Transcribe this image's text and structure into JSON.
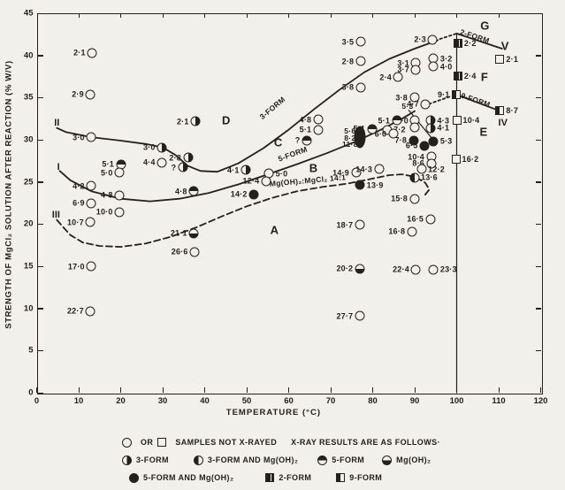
{
  "ink": "#24211d",
  "paper": "#f2f0ea",
  "chart_data": {
    "type": "scatter",
    "title": "",
    "xlabel": "TEMPERATURE (°C)",
    "ylabel": "STRENGTH OF MgCl₂ SOLUTION AFTER REACTION (% W/V)",
    "xlim": [
      0,
      120
    ],
    "ylim": [
      0,
      45
    ],
    "xticks": [
      0,
      10,
      20,
      30,
      40,
      50,
      60,
      70,
      80,
      90,
      100,
      110,
      120
    ],
    "yticks": [
      0,
      5,
      10,
      15,
      20,
      25,
      30,
      35,
      40,
      45
    ],
    "grid": false,
    "symbol_key": {
      "o": "open-circle (not x-rayed)",
      "r": "3-form (right-half filled circle)",
      "l": "3-form and Mg(OH)2 (left-half filled circle)",
      "t": "5-form (top-half filled circle)",
      "b": "Mg(OH)2 (bottom-half filled circle)",
      "f": "5-form and Mg(OH)2 (filled circle)",
      "sq": "open-square (not x-rayed)",
      "s2": "2-form (filled square, white stripe)",
      "s9": "9-form (half-filled square)",
      "blob": "merged filled samples"
    },
    "points": [
      {
        "label": "2·1",
        "t": 13.2,
        "s": 40.3,
        "sym": "o",
        "side": "l"
      },
      {
        "label": "2·9",
        "t": 12.8,
        "s": 35.4,
        "sym": "o",
        "side": "l"
      },
      {
        "label": "3·0",
        "t": 13.0,
        "s": 30.3,
        "sym": "o",
        "side": "l"
      },
      {
        "label": "5·1",
        "t": 20.0,
        "s": 27.1,
        "sym": "t",
        "side": "l"
      },
      {
        "label": "5·0",
        "t": 19.7,
        "s": 26.1,
        "sym": "o",
        "side": "l"
      },
      {
        "label": "4·4",
        "t": 29.8,
        "s": 27.3,
        "sym": "o",
        "side": "l"
      },
      {
        "label": "4·2",
        "t": 13.0,
        "s": 24.5,
        "sym": "o",
        "side": "l"
      },
      {
        "label": "4·8",
        "t": 19.7,
        "s": 23.4,
        "sym": "o",
        "side": "l"
      },
      {
        "label": "6·9",
        "t": 13.0,
        "s": 22.5,
        "sym": "o",
        "side": "l"
      },
      {
        "label": "10·0",
        "t": 19.7,
        "s": 21.4,
        "sym": "o",
        "side": "l"
      },
      {
        "label": "10·7",
        "t": 12.8,
        "s": 20.2,
        "sym": "o",
        "side": "l"
      },
      {
        "label": "17·0",
        "t": 13.0,
        "s": 15.0,
        "sym": "o",
        "side": "l"
      },
      {
        "label": "22·7",
        "t": 12.8,
        "s": 9.7,
        "sym": "o",
        "side": "l"
      },
      {
        "label": "3·0",
        "t": 29.8,
        "s": 29.1,
        "sym": "r",
        "side": "l"
      },
      {
        "label": "2·1",
        "t": 37.8,
        "s": 32.2,
        "sym": "r",
        "side": "l"
      },
      {
        "label": "2·8",
        "t": 36.0,
        "s": 27.9,
        "sym": "r",
        "side": "l"
      },
      {
        "label": "?",
        "t": 34.8,
        "s": 26.7,
        "sym": "r",
        "side": "l"
      },
      {
        "label": "26·6",
        "t": 37.6,
        "s": 16.7,
        "sym": "o",
        "side": "l"
      },
      {
        "label": "21·1",
        "t": 37.4,
        "s": 18.9,
        "sym": "b",
        "side": "l"
      },
      {
        "label": "4·8",
        "t": 37.4,
        "s": 23.9,
        "sym": "t",
        "side": "l"
      },
      {
        "label": "4·1",
        "t": 49.8,
        "s": 26.4,
        "sym": "r",
        "side": "l"
      },
      {
        "label": "5·0",
        "t": 55.3,
        "s": 26.0,
        "sym": "o",
        "side": "r"
      },
      {
        "label": "12·4",
        "t": 54.6,
        "s": 25.1,
        "sym": "o",
        "side": "l"
      },
      {
        "label": "14·2",
        "t": 51.7,
        "s": 23.5,
        "sym": "f",
        "side": "l"
      },
      {
        "label": "?",
        "t": 64.3,
        "s": 29.9,
        "sym": "t",
        "side": "l"
      },
      {
        "label": "4·8",
        "t": 67.0,
        "s": 32.4,
        "sym": "o",
        "side": "l"
      },
      {
        "label": "5·1",
        "t": 67.0,
        "s": 31.2,
        "sym": "o",
        "side": "l"
      },
      {
        "label": "3·5",
        "t": 77.1,
        "s": 41.6,
        "sym": "o",
        "side": "l"
      },
      {
        "label": "2·8",
        "t": 77.1,
        "s": 39.3,
        "sym": "o",
        "side": "l"
      },
      {
        "label": "3·8",
        "t": 77.1,
        "s": 36.2,
        "sym": "o",
        "side": "l"
      },
      {
        "label": "14·9",
        "t": 76.0,
        "s": 26.1,
        "sym": "o",
        "side": "l"
      },
      {
        "label": "14·3",
        "t": 81.5,
        "s": 26.5,
        "sym": "o",
        "side": "l"
      },
      {
        "label": "13·9",
        "t": 77.0,
        "s": 24.6,
        "sym": "f",
        "side": "r"
      },
      {
        "label": "18·7",
        "t": 76.9,
        "s": 19.9,
        "sym": "o",
        "side": "l"
      },
      {
        "label": "20·2",
        "t": 76.9,
        "s": 14.7,
        "sym": "b",
        "side": "l"
      },
      {
        "label": "27·7",
        "t": 76.9,
        "s": 9.1,
        "sym": "o",
        "side": "l"
      },
      {
        "label": "2·3",
        "t": 94.3,
        "s": 41.9,
        "sym": "o",
        "side": "l"
      },
      {
        "label": "3·1",
        "t": 90.3,
        "s": 39.1,
        "sym": "o",
        "side": "l"
      },
      {
        "label": "3·7",
        "t": 90.3,
        "s": 38.3,
        "sym": "o",
        "side": "l"
      },
      {
        "label": "3·2",
        "t": 94.5,
        "s": 39.6,
        "sym": "o",
        "side": "r"
      },
      {
        "label": "4·0",
        "t": 94.5,
        "s": 38.7,
        "sym": "o",
        "side": "r"
      },
      {
        "label": "2·4",
        "t": 86.1,
        "s": 37.4,
        "sym": "o",
        "side": "l"
      },
      {
        "label": "3·8",
        "t": 89.9,
        "s": 35.0,
        "sym": "o",
        "side": "l"
      },
      {
        "label": "4·7",
        "t": 92.6,
        "s": 34.2,
        "sym": "o",
        "side": "l"
      },
      {
        "label": "5·0",
        "t": 90.1,
        "s": 32.3,
        "sym": "o",
        "side": "l"
      },
      {
        "label": "",
        "t": 90.1,
        "s": 31.5,
        "sym": "o",
        "side": "l"
      },
      {
        "label": "5·1",
        "t": 85.7,
        "s": 32.3,
        "sym": "t",
        "side": "l"
      },
      {
        "label": "5·1",
        "t": 79.8,
        "s": 31.3,
        "sym": "t",
        "side": "l"
      },
      {
        "label": "7·2",
        "t": 83.4,
        "s": 31.2,
        "sym": "o",
        "side": "r"
      },
      {
        "label": "6·0",
        "t": 84.9,
        "s": 30.7,
        "sym": "o",
        "side": "l"
      },
      {
        "label": "4·3",
        "t": 93.8,
        "s": 32.3,
        "sym": "r",
        "side": "r"
      },
      {
        "label": "4·1",
        "t": 93.8,
        "s": 31.4,
        "sym": "r",
        "side": "r"
      },
      {
        "label": "7·8",
        "t": 89.7,
        "s": 29.9,
        "sym": "f",
        "side": "l"
      },
      {
        "label": "6·5",
        "t": 92.3,
        "s": 29.3,
        "sym": "f",
        "side": "l"
      },
      {
        "label": "5·3",
        "t": 94.5,
        "s": 29.8,
        "sym": "f",
        "side": "r"
      },
      {
        "label": "",
        "t": 76.9,
        "s": 30.3,
        "sym": "blob",
        "side": "l"
      },
      {
        "label": "10·4",
        "t": 93.9,
        "s": 28.0,
        "sym": "o",
        "side": "l"
      },
      {
        "label": "8·6",
        "t": 93.9,
        "s": 27.2,
        "sym": "o",
        "side": "l"
      },
      {
        "label": "12·2",
        "t": 91.6,
        "s": 26.5,
        "sym": "o",
        "side": "r"
      },
      {
        "label": "13·6",
        "t": 89.9,
        "s": 25.5,
        "sym": "l",
        "side": "r"
      },
      {
        "label": "15·8",
        "t": 89.9,
        "s": 23.0,
        "sym": "o",
        "side": "l"
      },
      {
        "label": "16·5",
        "t": 93.7,
        "s": 20.6,
        "sym": "o",
        "side": "l"
      },
      {
        "label": "16·8",
        "t": 89.3,
        "s": 19.1,
        "sym": "o",
        "side": "l"
      },
      {
        "label": "22·4",
        "t": 90.3,
        "s": 14.6,
        "sym": "o",
        "side": "l"
      },
      {
        "label": "23·3",
        "t": 94.5,
        "s": 14.6,
        "sym": "o",
        "side": "r"
      },
      {
        "label": "2·2",
        "t": 100.3,
        "s": 41.4,
        "sym": "s2",
        "side": "r"
      },
      {
        "label": "2·4",
        "t": 100.3,
        "s": 37.6,
        "sym": "s2",
        "side": "r"
      },
      {
        "label": "9·1",
        "t": 99.8,
        "s": 35.4,
        "sym": "s9",
        "side": "l"
      },
      {
        "label": "8·7",
        "t": 110.3,
        "s": 33.5,
        "sym": "s9",
        "side": "r"
      },
      {
        "label": "2·1",
        "t": 110.3,
        "s": 39.5,
        "sym": "sq",
        "side": "r"
      },
      {
        "label": "10·4",
        "t": 100.0,
        "s": 32.3,
        "sym": "sq",
        "side": "r"
      },
      {
        "label": "16·2",
        "t": 99.8,
        "s": 27.7,
        "sym": "sq",
        "side": "r"
      }
    ],
    "floating_labels": [
      {
        "text": "G",
        "t": 106.8,
        "s": 43.5,
        "cls": "lg",
        "rot": 0
      },
      {
        "text": "V",
        "t": 111.6,
        "s": 41.1,
        "cls": "lg",
        "rot": 0
      },
      {
        "text": "F",
        "t": 106.7,
        "s": 37.5,
        "cls": "lg",
        "rot": 0
      },
      {
        "text": "E",
        "t": 106.5,
        "s": 30.9,
        "cls": "lg",
        "rot": 0
      },
      {
        "text": "IV",
        "t": 111.0,
        "s": 32.0,
        "cls": "md",
        "rot": 0
      },
      {
        "text": "D",
        "t": 45.2,
        "s": 32.3,
        "cls": "lg",
        "rot": 0
      },
      {
        "text": "C",
        "t": 57.6,
        "s": 29.7,
        "cls": "lg",
        "rot": 0
      },
      {
        "text": "B",
        "t": 66.0,
        "s": 26.6,
        "cls": "lg",
        "rot": 0
      },
      {
        "text": "A",
        "t": 56.7,
        "s": 19.3,
        "cls": "lg",
        "rot": 0
      },
      {
        "text": "II",
        "t": 4.8,
        "s": 32.0,
        "cls": "md",
        "rot": 0
      },
      {
        "text": "I",
        "t": 5.2,
        "s": 26.8,
        "cls": "md",
        "rot": 0
      },
      {
        "text": "III",
        "t": 4.6,
        "s": 21.1,
        "cls": "md",
        "rot": 0
      },
      {
        "text": "3-FORM",
        "t": 56.0,
        "s": 33.8,
        "cls": "sm",
        "rot": -40
      },
      {
        "text": "5-FORM",
        "t": 61.0,
        "s": 28.3,
        "cls": "sm",
        "rot": -20
      },
      {
        "text": "2-FORM",
        "t": 104.3,
        "s": 42.3,
        "cls": "sm",
        "rot": 18
      },
      {
        "text": "9-FORM",
        "t": 104.6,
        "s": 34.7,
        "cls": "sm",
        "rot": 19
      },
      {
        "text": "Mg(OH)₂:MgCl₂ 14:1",
        "t": 64.6,
        "s": 25.2,
        "cls": "sm",
        "rot": -5
      },
      {
        "text": "5·3",
        "t": 88.3,
        "s": 34.0,
        "cls": "sm",
        "rot": 0
      },
      {
        "text": "5·6",
        "t": 74.6,
        "s": 31.0,
        "cls": "sm",
        "rot": 0
      },
      {
        "text": "8·2",
        "t": 74.6,
        "s": 30.25,
        "cls": "sm",
        "rot": 0
      },
      {
        "text": "11·8",
        "t": 74.6,
        "s": 29.5,
        "cls": "sm",
        "rot": 0
      }
    ],
    "curves": [
      {
        "name": "boundary-II-3-form",
        "style": "solid",
        "pts": [
          [
            4.8,
            31.4
          ],
          [
            7,
            30.9
          ],
          [
            13,
            30.3
          ],
          [
            20,
            29.9
          ],
          [
            26,
            29.5
          ],
          [
            30,
            29.1
          ],
          [
            33,
            28.2
          ],
          [
            36,
            26.9
          ],
          [
            39,
            26.3
          ],
          [
            43,
            26.2
          ],
          [
            48,
            27.2
          ],
          [
            54,
            29.0
          ],
          [
            60,
            31.2
          ],
          [
            66,
            33.6
          ],
          [
            72,
            35.9
          ],
          [
            78,
            38.0
          ],
          [
            84,
            39.6
          ],
          [
            90,
            40.8
          ],
          [
            95.5,
            41.8
          ]
        ]
      },
      {
        "name": "boundary-3form-dashdot",
        "style": "dashdot",
        "pts": [
          [
            96,
            41.95
          ],
          [
            100,
            42.6
          ]
        ]
      },
      {
        "name": "boundary-2-form-V",
        "style": "solid",
        "pts": [
          [
            100,
            42.6
          ],
          [
            110.8,
            40.8
          ]
        ]
      },
      {
        "name": "boundary-I-5-form",
        "style": "solid",
        "pts": [
          [
            5.5,
            26.3
          ],
          [
            8,
            25.2
          ],
          [
            13,
            23.9
          ],
          [
            20,
            23.0
          ],
          [
            27,
            22.7
          ],
          [
            34,
            23.0
          ],
          [
            41,
            23.7
          ],
          [
            48,
            24.7
          ],
          [
            55,
            25.9
          ],
          [
            62,
            27.1
          ],
          [
            69,
            28.4
          ],
          [
            76,
            29.8
          ],
          [
            82,
            31.2
          ],
          [
            87,
            32.5
          ],
          [
            90,
            33.4
          ]
        ]
      },
      {
        "name": "boundary-9form-dashdot",
        "style": "dashdot",
        "pts": [
          [
            93.4,
            34.25
          ],
          [
            98.6,
            35.15
          ]
        ]
      },
      {
        "name": "boundary-9-form-IV",
        "style": "solid",
        "pts": [
          [
            100.7,
            35.2
          ],
          [
            109.3,
            33.6
          ]
        ]
      },
      {
        "name": "boundary-III-mgoh2-dashed",
        "style": "dashed",
        "pts": [
          [
            4.8,
            20.5
          ],
          [
            6,
            19.8
          ],
          [
            8,
            18.7
          ],
          [
            11,
            17.8
          ],
          [
            15,
            17.4
          ],
          [
            20,
            17.3
          ],
          [
            26,
            17.7
          ],
          [
            32,
            18.5
          ],
          [
            38,
            19.6
          ],
          [
            44,
            20.9
          ],
          [
            50,
            22.1
          ],
          [
            56,
            23.1
          ],
          [
            62,
            23.9
          ],
          [
            68,
            24.4
          ],
          [
            74,
            24.8
          ],
          [
            80,
            25.4
          ],
          [
            84,
            25.8
          ],
          [
            87,
            25.9
          ],
          [
            90,
            25.6
          ],
          [
            92.5,
            24.9
          ],
          [
            93.5,
            24.1
          ],
          [
            92.5,
            23.5
          ]
        ]
      },
      {
        "name": "leader-5-3",
        "style": "leader",
        "pts": [
          [
            88.6,
            33.5
          ],
          [
            94.2,
            30.1
          ]
        ]
      },
      {
        "name": "vertical-100c",
        "style": "thin",
        "pts": [
          [
            100,
            42.6
          ],
          [
            100,
            0
          ]
        ]
      }
    ]
  },
  "legend": {
    "rows": [
      [
        {
          "sym": "o"
        },
        {
          "text": "OR",
          "gap": 5
        },
        {
          "sym": "sq",
          "gap": 5
        },
        {
          "text": "SAMPLES NOT X-RAYED",
          "gap": 5
        },
        {
          "text": "X-RAY RESULTS ARE AS FOLLOWS·",
          "gap": 16
        }
      ],
      [
        {
          "sym": "r"
        },
        {
          "text": "3-FORM"
        },
        {
          "sym": "l",
          "gap": 28
        },
        {
          "text": "3-FORM AND Mg(OH)₂"
        },
        {
          "sym": "t",
          "gap": 22
        },
        {
          "text": "5-FORM"
        },
        {
          "sym": "b",
          "gap": 20
        },
        {
          "text": "Mg(OH)₂"
        }
      ],
      [
        {
          "sym": "f",
          "gap": 8
        },
        {
          "text": "5-FORM AND Mg(OH)₂"
        },
        {
          "sym": "s2",
          "gap": 36
        },
        {
          "text": "2-FORM"
        },
        {
          "sym": "s9",
          "gap": 28
        },
        {
          "text": "9-FORM"
        }
      ]
    ]
  }
}
